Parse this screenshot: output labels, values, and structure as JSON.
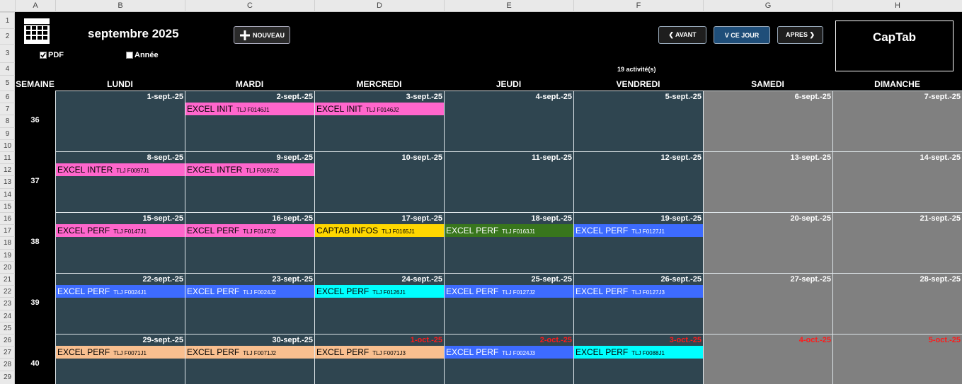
{
  "column_headers": [
    "A",
    "B",
    "C",
    "D",
    "E",
    "F",
    "G",
    "H"
  ],
  "row_numbers": [
    1,
    2,
    3,
    4,
    5,
    6,
    7,
    8,
    9,
    10,
    11,
    12,
    13,
    14,
    15,
    16,
    17,
    18,
    19,
    20,
    21,
    22,
    23,
    24,
    25,
    26,
    27,
    28,
    29
  ],
  "header": {
    "month_title": "septembre 2025",
    "new_button": "NOUVEAU",
    "prev_button": "❮ AVANT",
    "today_button": "V CE JOUR",
    "next_button": "APRES ❯",
    "brand": "CapTab",
    "activity_count": "19 activité(s)",
    "options": [
      {
        "label": "PDF",
        "checked": true
      },
      {
        "label": "Année",
        "checked": false
      }
    ]
  },
  "day_headers": [
    "SEMAINE",
    "LUNDI",
    "MARDI",
    "MERCREDI",
    "JEUDI",
    "VENDREDI",
    "SAMEDI",
    "DIMANCHE"
  ],
  "weeks": [
    {
      "number": 36,
      "days": [
        {
          "date": "1-sept.-25",
          "events": []
        },
        {
          "date": "2-sept.-25",
          "events": [
            {
              "title": "EXCEL INIT",
              "code": "TLJ F0146J1",
              "color": "#ff66cc"
            }
          ]
        },
        {
          "date": "3-sept.-25",
          "events": [
            {
              "title": "EXCEL INIT",
              "code": "TLJ F0146J2",
              "color": "#ff66cc"
            }
          ]
        },
        {
          "date": "4-sept.-25",
          "events": []
        },
        {
          "date": "5-sept.-25",
          "events": []
        },
        {
          "date": "6-sept.-25",
          "events": []
        },
        {
          "date": "7-sept.-25",
          "events": []
        }
      ]
    },
    {
      "number": 37,
      "days": [
        {
          "date": "8-sept.-25",
          "events": [
            {
              "title": "EXCEL INTER",
              "code": "TLJ F0097J1",
              "color": "#ff66cc"
            }
          ]
        },
        {
          "date": "9-sept.-25",
          "events": [
            {
              "title": "EXCEL INTER",
              "code": "TLJ F0097J2",
              "color": "#ff66cc"
            }
          ]
        },
        {
          "date": "10-sept.-25",
          "events": []
        },
        {
          "date": "11-sept.-25",
          "events": []
        },
        {
          "date": "12-sept.-25",
          "events": []
        },
        {
          "date": "13-sept.-25",
          "events": []
        },
        {
          "date": "14-sept.-25",
          "events": []
        }
      ]
    },
    {
      "number": 38,
      "days": [
        {
          "date": "15-sept.-25",
          "events": [
            {
              "title": "EXCEL PERF",
              "code": "TLJ F0147J1",
              "color": "#ff66cc"
            }
          ]
        },
        {
          "date": "16-sept.-25",
          "events": [
            {
              "title": "EXCEL PERF",
              "code": "TLJ F0147J2",
              "color": "#ff66cc"
            }
          ]
        },
        {
          "date": "17-sept.-25",
          "events": [
            {
              "title": "CAPTAB INFOS",
              "code": "TLJ F0165J1",
              "color": "#ffd700"
            }
          ]
        },
        {
          "date": "18-sept.-25",
          "events": [
            {
              "title": "EXCEL PERF",
              "code": "TLJ F0163J1",
              "color": "#38761d"
            }
          ]
        },
        {
          "date": "19-sept.-25",
          "events": [
            {
              "title": "EXCEL PERF",
              "code": "TLJ F0127J1",
              "color": "#3d6bff"
            }
          ]
        },
        {
          "date": "20-sept.-25",
          "events": []
        },
        {
          "date": "21-sept.-25",
          "events": []
        }
      ]
    },
    {
      "number": 39,
      "days": [
        {
          "date": "22-sept.-25",
          "events": [
            {
              "title": "EXCEL PERF",
              "code": "TLJ F0024J1",
              "color": "#3d6bff"
            }
          ]
        },
        {
          "date": "23-sept.-25",
          "events": [
            {
              "title": "EXCEL PERF",
              "code": "TLJ F0024J2",
              "color": "#3d6bff"
            }
          ]
        },
        {
          "date": "24-sept.-25",
          "events": [
            {
              "title": "EXCEL PERF",
              "code": "TLJ F0126J1",
              "color": "#00ffff"
            }
          ]
        },
        {
          "date": "25-sept.-25",
          "events": [
            {
              "title": "EXCEL PERF",
              "code": "TLJ F0127J2",
              "color": "#3d6bff"
            }
          ]
        },
        {
          "date": "26-sept.-25",
          "events": [
            {
              "title": "EXCEL PERF",
              "code": "TLJ F0127J3",
              "color": "#3d6bff"
            }
          ]
        },
        {
          "date": "27-sept.-25",
          "events": []
        },
        {
          "date": "28-sept.-25",
          "events": []
        }
      ]
    },
    {
      "number": 40,
      "days": [
        {
          "date": "29-sept.-25",
          "events": [
            {
              "title": "EXCEL PERF",
              "code": "TLJ F0071J1",
              "color": "#f9bf8f"
            }
          ]
        },
        {
          "date": "30-sept.-25",
          "events": [
            {
              "title": "EXCEL PERF",
              "code": "TLJ F0071J2",
              "color": "#f9bf8f"
            }
          ]
        },
        {
          "date": "1-oct.-25",
          "other_month": true,
          "events": [
            {
              "title": "EXCEL PERF",
              "code": "TLJ F0071J3",
              "color": "#f9bf8f"
            }
          ]
        },
        {
          "date": "2-oct.-25",
          "other_month": true,
          "events": [
            {
              "title": "EXCEL PERF",
              "code": "TLJ F0024J3",
              "color": "#3d6bff"
            }
          ]
        },
        {
          "date": "3-oct.-25",
          "other_month": true,
          "events": [
            {
              "title": "EXCEL PERF",
              "code": "TLJ F0088J1",
              "color": "#00ffff"
            }
          ]
        },
        {
          "date": "4-oct.-25",
          "other_month": true,
          "events": []
        },
        {
          "date": "5-oct.-25",
          "other_month": true,
          "events": []
        }
      ]
    }
  ]
}
